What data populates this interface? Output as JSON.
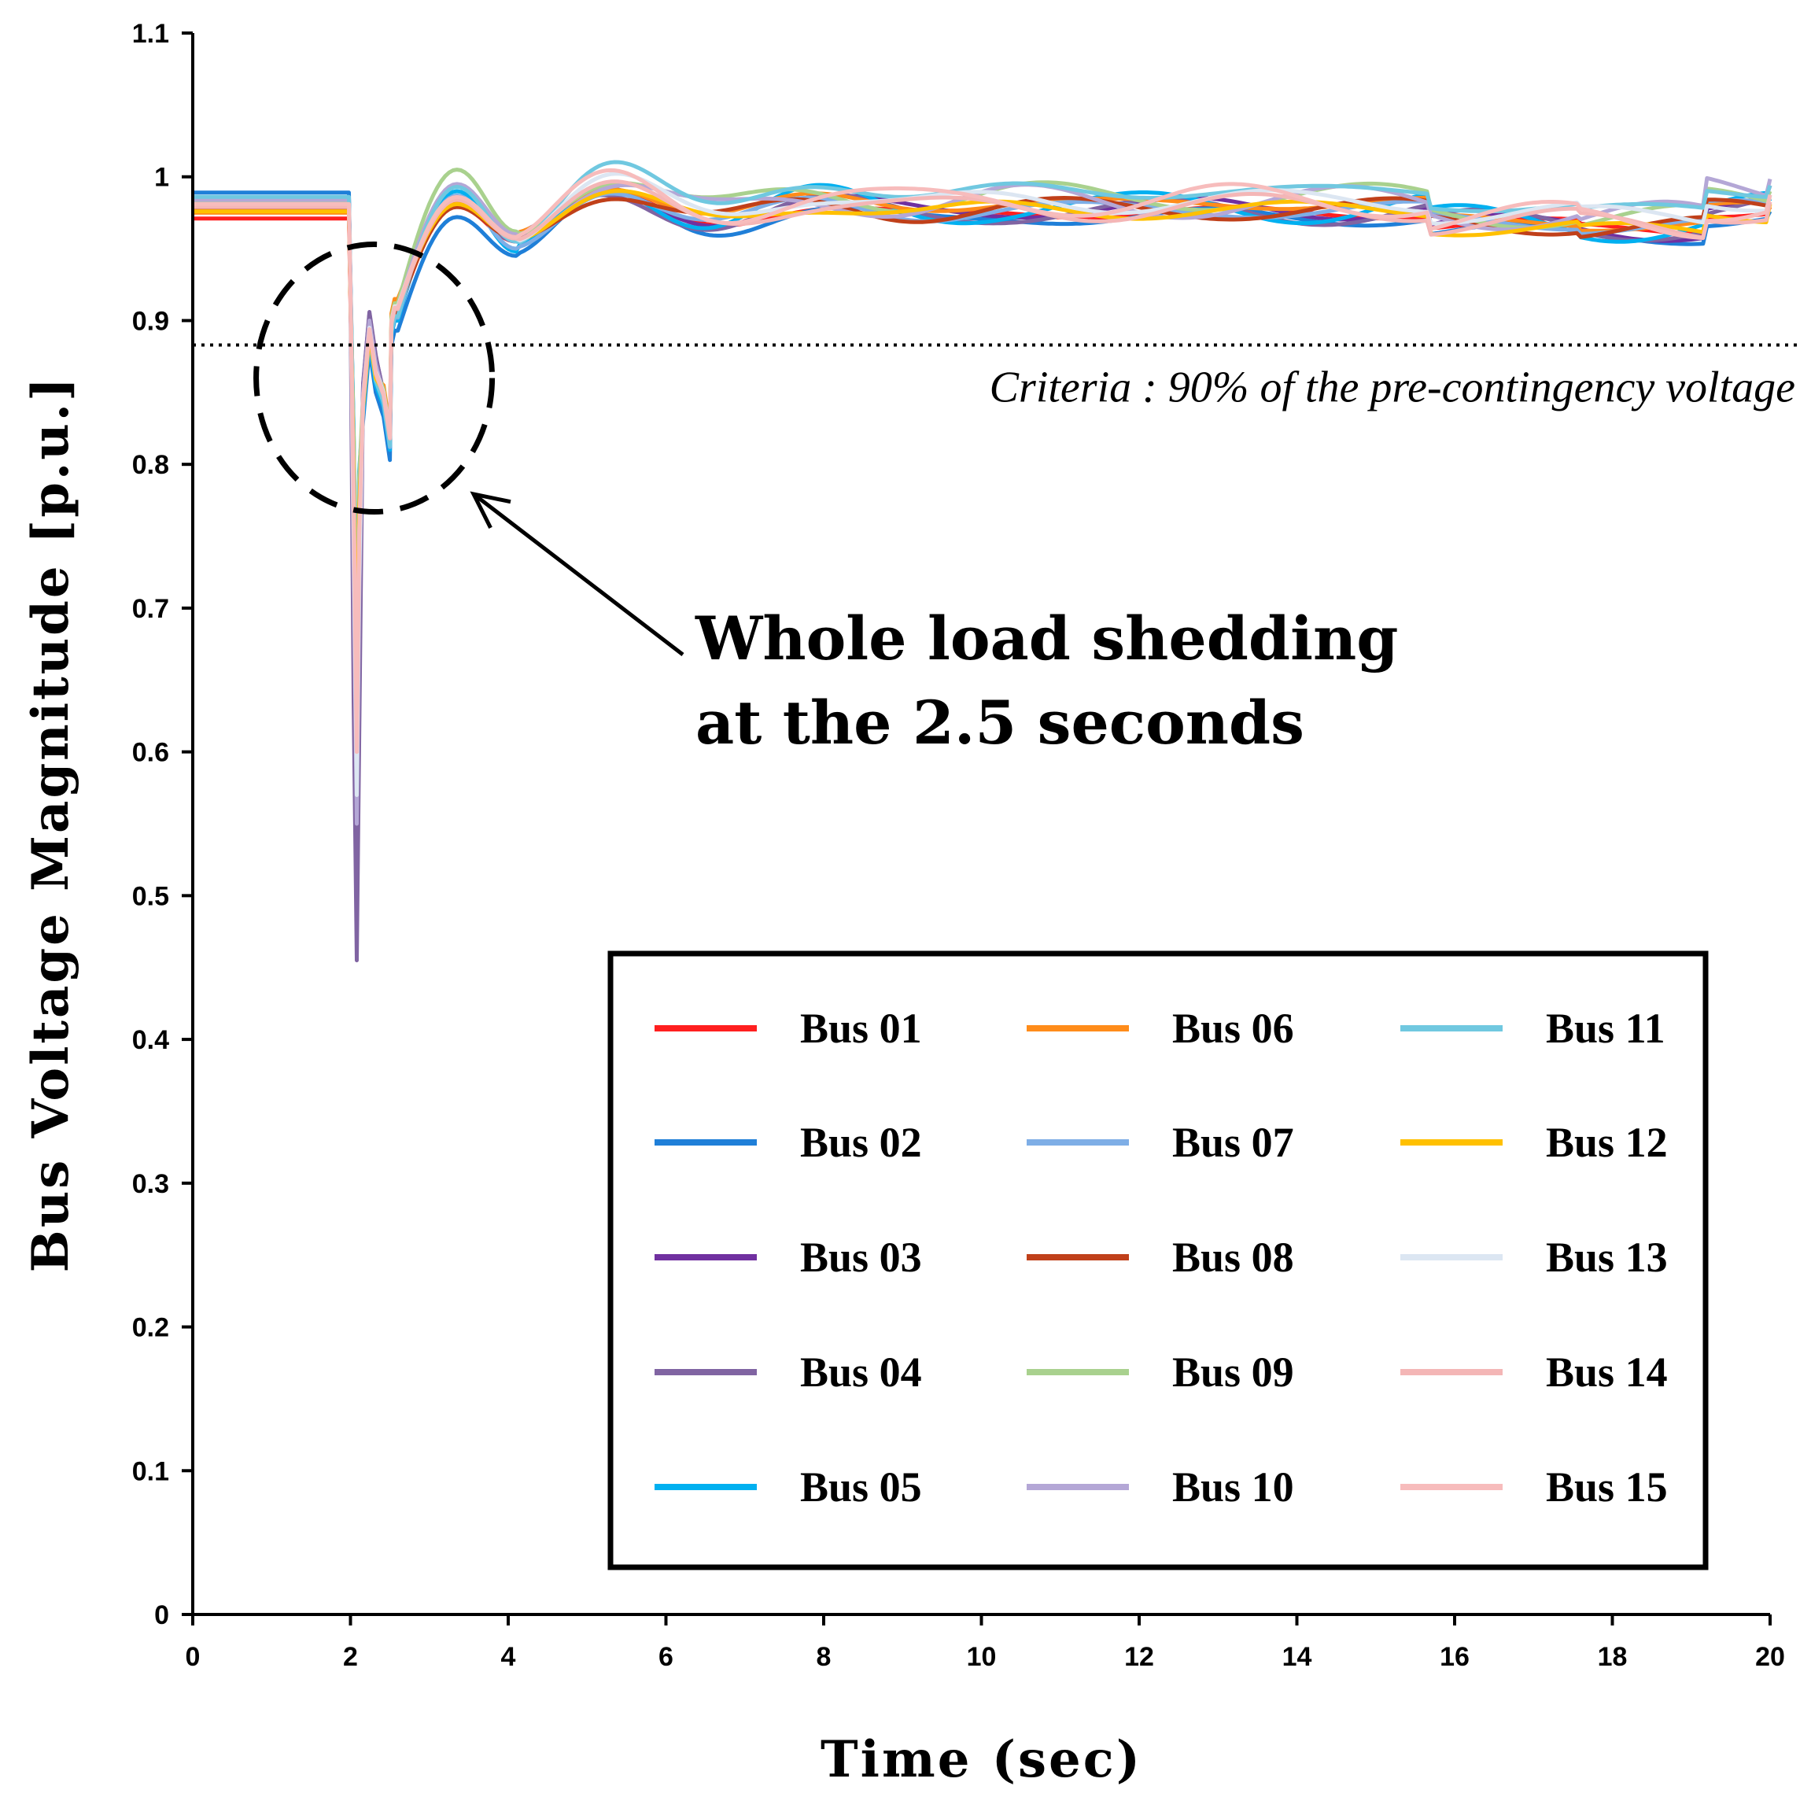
{
  "chart_data": {
    "type": "line",
    "title": "",
    "xlabel": "Time (sec)",
    "ylabel": "Bus Voltage Magnitude [p.u.]",
    "xlim": [
      0,
      20
    ],
    "ylim": [
      0,
      1.1
    ],
    "x_ticks": [
      "0",
      "2",
      "4",
      "6",
      "8",
      "10",
      "12",
      "14",
      "16",
      "18",
      "20"
    ],
    "y_ticks": [
      "0",
      "0.1",
      "0.2",
      "0.3",
      "0.4",
      "0.5",
      "0.6",
      "0.7",
      "0.8",
      "0.9",
      "1",
      "1.1"
    ],
    "grid": false,
    "legend_position": "bottom-right",
    "criteria_line": {
      "y": 0.883,
      "label": "Criteria : 90% of the pre-contingency voltage"
    },
    "annotation": {
      "line1": "Whole load shedding",
      "line2": "at the 2.5 seconds",
      "x": 2.3,
      "y": 0.86
    },
    "series": [
      {
        "name": "Bus 01",
        "color": "#ff1f1f",
        "pre": 0.971,
        "min": 0.62,
        "bump": 0.895,
        "dip": 0.815,
        "peak": 0.98,
        "trough": 0.955,
        "steady": 0.975
      },
      {
        "name": "Bus 02",
        "color": "#1f7fd8",
        "pre": 0.989,
        "min": 0.64,
        "bump": 0.88,
        "dip": 0.803,
        "peak": 0.972,
        "trough": 0.945,
        "steady": 0.972
      },
      {
        "name": "Bus 03",
        "color": "#7030a0",
        "pre": 0.985,
        "min": 0.58,
        "bump": 0.905,
        "dip": 0.82,
        "peak": 0.985,
        "trough": 0.958,
        "steady": 0.978
      },
      {
        "name": "Bus 04",
        "color": "#8064a2",
        "pre": 0.98,
        "min": 0.455,
        "bump": 0.906,
        "dip": 0.818,
        "peak": 0.983,
        "trough": 0.955,
        "steady": 0.976
      },
      {
        "name": "Bus 05",
        "color": "#00b0f0",
        "pre": 0.983,
        "min": 0.645,
        "bump": 0.885,
        "dip": 0.81,
        "peak": 0.99,
        "trough": 0.948,
        "steady": 0.982
      },
      {
        "name": "Bus 06",
        "color": "#ff8c1a",
        "pre": 0.975,
        "min": 0.6,
        "bump": 0.89,
        "dip": 0.825,
        "peak": 0.982,
        "trough": 0.96,
        "steady": 0.98
      },
      {
        "name": "Bus 07",
        "color": "#7eaee6",
        "pre": 0.978,
        "min": 0.62,
        "bump": 0.893,
        "dip": 0.812,
        "peak": 0.987,
        "trough": 0.95,
        "steady": 0.979
      },
      {
        "name": "Bus 08",
        "color": "#c0401a",
        "pre": 0.977,
        "min": 0.63,
        "bump": 0.89,
        "dip": 0.816,
        "peak": 0.979,
        "trough": 0.957,
        "steady": 0.975
      },
      {
        "name": "Bus 09",
        "color": "#a9d18e",
        "pre": 0.982,
        "min": 0.64,
        "bump": 0.897,
        "dip": 0.822,
        "peak": 1.005,
        "trough": 0.962,
        "steady": 0.986
      },
      {
        "name": "Bus 10",
        "color": "#b4a7d6",
        "pre": 0.984,
        "min": 0.55,
        "bump": 0.9,
        "dip": 0.818,
        "peak": 0.995,
        "trough": 0.96,
        "steady": 0.984
      },
      {
        "name": "Bus 11",
        "color": "#70c8e0",
        "pre": 0.986,
        "min": 0.63,
        "bump": 0.888,
        "dip": 0.813,
        "peak": 0.993,
        "trough": 0.955,
        "steady": 0.988
      },
      {
        "name": "Bus 12",
        "color": "#ffc000",
        "pre": 0.976,
        "min": 0.62,
        "bump": 0.89,
        "dip": 0.82,
        "peak": 0.981,
        "trough": 0.958,
        "steady": 0.978
      },
      {
        "name": "Bus 13",
        "color": "#dce6f2",
        "pre": 0.98,
        "min": 0.57,
        "bump": 0.895,
        "dip": 0.82,
        "peak": 0.985,
        "trough": 0.957,
        "steady": 0.982
      },
      {
        "name": "Bus 14",
        "color": "#f4b6b6",
        "pre": 0.979,
        "min": 0.6,
        "bump": 0.893,
        "dip": 0.818,
        "peak": 0.984,
        "trough": 0.957,
        "steady": 0.981
      },
      {
        "name": "Bus 15",
        "color": "#f7bcbc",
        "pre": 0.981,
        "min": 0.6,
        "bump": 0.894,
        "dip": 0.819,
        "peak": 0.986,
        "trough": 0.958,
        "steady": 0.983
      }
    ]
  }
}
